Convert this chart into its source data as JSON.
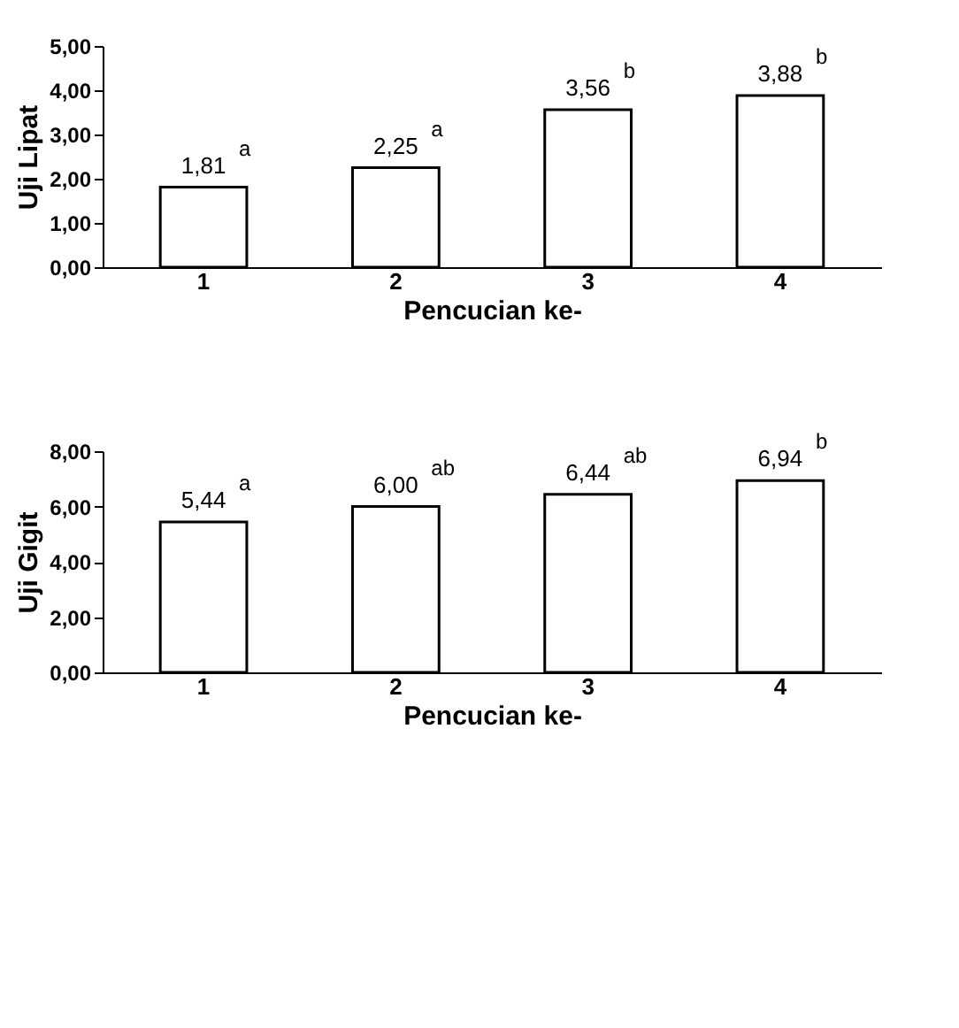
{
  "chart_data": [
    {
      "type": "bar",
      "categories": [
        "1",
        "2",
        "3",
        "4"
      ],
      "values": [
        1.81,
        2.25,
        3.56,
        3.88
      ],
      "color": "#ffffff",
      "xlabel": "Pencucian ke-",
      "ylabel": "Uji Lipat",
      "ylim": [
        0,
        5
      ],
      "yticks": [
        {
          "value": 0,
          "label": "0,00"
        },
        {
          "value": 1,
          "label": "1,00"
        },
        {
          "value": 2,
          "label": "2,00"
        },
        {
          "value": 3,
          "label": "3,00"
        },
        {
          "value": 4,
          "label": "4,00"
        },
        {
          "value": 5,
          "label": "5,00"
        }
      ],
      "value_labels": [
        "1,81",
        "2,25",
        "3,56",
        "3,88"
      ],
      "annotations": [
        {
          "text": "a",
          "x": "1",
          "y": 1.81
        },
        {
          "text": "a",
          "x": "2",
          "y": 2.25
        },
        {
          "text": "b",
          "x": "3",
          "y": 3.56
        },
        {
          "text": "b",
          "x": "4",
          "y": 3.88
        }
      ]
    },
    {
      "type": "bar",
      "categories": [
        "1",
        "2",
        "3",
        "4"
      ],
      "values": [
        5.44,
        6.0,
        6.44,
        6.94
      ],
      "color": "#ffffff",
      "xlabel": "Pencucian ke-",
      "ylabel": "Uji Gigit",
      "ylim": [
        0,
        8
      ],
      "yticks": [
        {
          "value": 0,
          "label": "0,00"
        },
        {
          "value": 2,
          "label": "2,00"
        },
        {
          "value": 4,
          "label": "4,00"
        },
        {
          "value": 6,
          "label": "6,00"
        },
        {
          "value": 8,
          "label": "8,00"
        }
      ],
      "value_labels": [
        "5,44",
        "6,00",
        "6,44",
        "6,94"
      ],
      "annotations": [
        {
          "text": "a",
          "x": "1",
          "y": 5.44
        },
        {
          "text": "ab",
          "x": "2",
          "y": 6.0
        },
        {
          "text": "ab",
          "x": "3",
          "y": 6.44
        },
        {
          "text": "b",
          "x": "4",
          "y": 6.94
        }
      ]
    }
  ]
}
